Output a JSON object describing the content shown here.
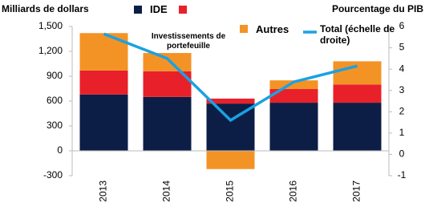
{
  "chart_data": {
    "type": "bar",
    "stacked": true,
    "y_label": "Milliards de dollars",
    "y2_label": "Pourcentage du PIB",
    "categories": [
      "2013",
      "2014",
      "2015",
      "2016",
      "2017"
    ],
    "series": [
      {
        "name": "IDE",
        "color": "#0c1e45",
        "values": [
          680,
          650,
          570,
          580,
          580
        ]
      },
      {
        "name": "Investissements de portefeuille",
        "color": "#e8202a",
        "values": [
          290,
          310,
          60,
          165,
          220
        ]
      },
      {
        "name": "Autres",
        "color": "#f39325",
        "values": [
          450,
          220,
          -220,
          105,
          280
        ]
      },
      {
        "name": "Total (échelle de droite)",
        "color": "#1ba1e2",
        "type": "line",
        "axis": "y2",
        "values": [
          5.65,
          4.5,
          1.6,
          3.4,
          4.15
        ]
      }
    ],
    "ylim": [
      -300,
      1500
    ],
    "yticks": [
      -300,
      0,
      300,
      600,
      900,
      {
        "value": 1200,
        "label": "1,200"
      },
      {
        "value": 1500,
        "label": "1,500"
      }
    ],
    "y2lim": [
      -1,
      6
    ],
    "y2ticks": [
      -1,
      0,
      1,
      2,
      3,
      4,
      5,
      6
    ],
    "grid": false
  }
}
